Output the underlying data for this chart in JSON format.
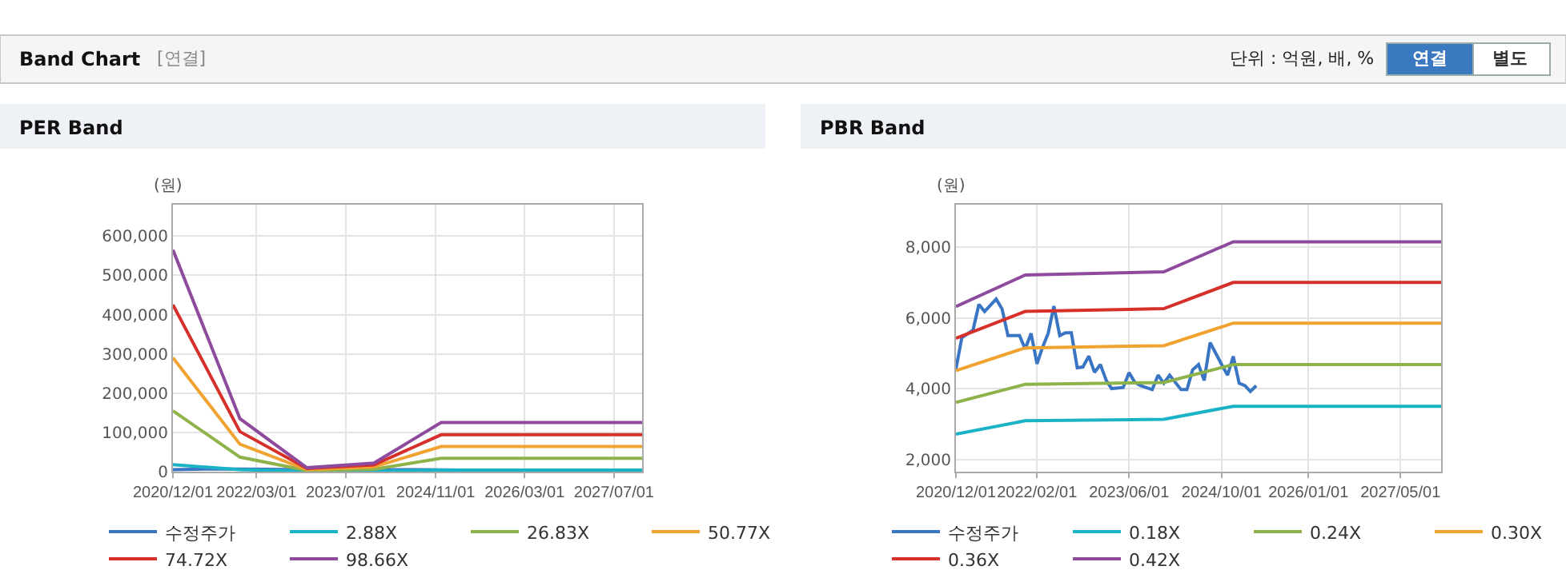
{
  "chart_data": [
    {
      "type": "other",
      "title": "Band Chart",
      "annotations": [
        "[연결]",
        "단위 : 억원, 배, %",
        "연결",
        "별도"
      ]
    },
    {
      "type": "line",
      "title": "PER Band",
      "ylabel": "(원)",
      "grid": true,
      "legend": "bottom",
      "marker": "none",
      "line_style": "solid",
      "xlim": [
        "2020-12-01",
        "2027-12-01"
      ],
      "xticks": [
        {
          "value": "2020-12-01",
          "label": "2020/12/01"
        },
        {
          "value": "2022-03-01",
          "label": "2022/03/01"
        },
        {
          "value": "2023-07-01",
          "label": "2023/07/01"
        },
        {
          "value": "2024-11-01",
          "label": "2024/11/01"
        },
        {
          "value": "2026-03-01",
          "label": "2026/03/01"
        },
        {
          "value": "2027-07-01",
          "label": "2027/07/01"
        }
      ],
      "ylim": [
        0,
        680000
      ],
      "yticks": [
        {
          "value": 0,
          "label": "0"
        },
        {
          "value": 100000,
          "label": "100,000"
        },
        {
          "value": 200000,
          "label": "200,000"
        },
        {
          "value": 300000,
          "label": "300,000"
        },
        {
          "value": 400000,
          "label": "400,000"
        },
        {
          "value": 500000,
          "label": "500,000"
        },
        {
          "value": 600000,
          "label": "600,000"
        }
      ],
      "series": [
        {
          "name": "수정주가",
          "color": "#3a75c4",
          "x": [
            "2020-12-01",
            "2021-07-01",
            "2022-05-01",
            "2023-03-01",
            "2024-08-01",
            "2025-04-01"
          ],
          "values": [
            5000,
            7000,
            6000,
            4000,
            5000,
            4000
          ]
        },
        {
          "name": "2.88X",
          "color": "#1ab3c6",
          "x": [
            "2020-12-01",
            "2021-12-01",
            "2022-12-01",
            "2023-12-01",
            "2024-12-01",
            "2027-12-01"
          ],
          "values": [
            18000,
            5000,
            1000,
            1000,
            4000,
            4000
          ]
        },
        {
          "name": "26.83X",
          "color": "#8db34a",
          "x": [
            "2020-12-01",
            "2021-12-01",
            "2022-12-01",
            "2023-12-01",
            "2024-12-01",
            "2027-12-01"
          ],
          "values": [
            155000,
            37000,
            3000,
            6000,
            34000,
            34000
          ]
        },
        {
          "name": "50.77X",
          "color": "#f0a330",
          "x": [
            "2020-12-01",
            "2021-12-01",
            "2022-12-01",
            "2023-12-01",
            "2024-12-01",
            "2027-12-01"
          ],
          "values": [
            290000,
            70000,
            5000,
            12000,
            64000,
            64000
          ]
        },
        {
          "name": "74.72X",
          "color": "#d6302b",
          "x": [
            "2020-12-01",
            "2021-12-01",
            "2022-12-01",
            "2023-12-01",
            "2024-12-01",
            "2027-12-01"
          ],
          "values": [
            425000,
            102000,
            8000,
            17000,
            94000,
            94000
          ]
        },
        {
          "name": "98.66X",
          "color": "#8e4a9c",
          "x": [
            "2020-12-01",
            "2021-12-01",
            "2022-12-01",
            "2023-12-01",
            "2024-12-01",
            "2027-12-01"
          ],
          "values": [
            565000,
            135000,
            10000,
            22000,
            125000,
            125000
          ]
        }
      ]
    },
    {
      "type": "line",
      "title": "PBR Band",
      "ylabel": "(원)",
      "grid": true,
      "legend": "bottom",
      "marker": "none",
      "line_style": "solid",
      "xlim": [
        "2020-12-01",
        "2027-12-01"
      ],
      "xticks": [
        {
          "value": "2020-12-01",
          "label": "2020/12/01"
        },
        {
          "value": "2022-02-01",
          "label": "2022/02/01"
        },
        {
          "value": "2023-06-01",
          "label": "2023/06/01"
        },
        {
          "value": "2024-10-01",
          "label": "2024/10/01"
        },
        {
          "value": "2026-01-01",
          "label": "2026/01/01"
        },
        {
          "value": "2027-05-01",
          "label": "2027/05/01"
        }
      ],
      "ylim": [
        1650,
        9200
      ],
      "yticks": [
        {
          "value": 2000,
          "label": "2,000"
        },
        {
          "value": 4000,
          "label": "4,000"
        },
        {
          "value": 6000,
          "label": "6,000"
        },
        {
          "value": 8000,
          "label": "8,000"
        }
      ],
      "series": [
        {
          "name": "수정주가",
          "color": "#3a75c4",
          "x": [
            "2020-12-01",
            "2021-01-01",
            "2021-03-01",
            "2021-04-01",
            "2021-05-01",
            "2021-07-01",
            "2021-08-01",
            "2021-09-01",
            "2021-11-01",
            "2021-12-01",
            "2022-01-01",
            "2022-02-01",
            "2022-03-01",
            "2022-04-01",
            "2022-05-01",
            "2022-06-01",
            "2022-07-01",
            "2022-08-01",
            "2022-09-01",
            "2022-10-01",
            "2022-11-01",
            "2022-12-01",
            "2023-01-01",
            "2023-02-01",
            "2023-03-01",
            "2023-05-01",
            "2023-06-01",
            "2023-07-01",
            "2023-08-01",
            "2023-10-01",
            "2023-11-01",
            "2023-12-01",
            "2024-01-01",
            "2024-03-01",
            "2024-04-01",
            "2024-05-01",
            "2024-06-01",
            "2024-07-01",
            "2024-08-01",
            "2024-10-01",
            "2024-11-01",
            "2024-12-01",
            "2025-01-01",
            "2025-02-01",
            "2025-03-01",
            "2025-04-01"
          ],
          "values": [
            4550,
            5440,
            5650,
            6380,
            6180,
            6530,
            6250,
            5500,
            5500,
            5120,
            5560,
            4700,
            5150,
            5560,
            6330,
            5500,
            5580,
            5580,
            4590,
            4610,
            4920,
            4460,
            4680,
            4230,
            4000,
            4030,
            4450,
            4180,
            4080,
            3970,
            4380,
            4150,
            4380,
            3970,
            3970,
            4530,
            4680,
            4230,
            5300,
            4680,
            4380,
            4910,
            4150,
            4080,
            3920,
            4080
          ]
        },
        {
          "name": "0.18X",
          "color": "#1ab3c6",
          "x": [
            "2020-12-01",
            "2021-12-01",
            "2023-06-01",
            "2023-12-01",
            "2024-12-01",
            "2027-12-01"
          ],
          "values": [
            2710,
            3090,
            3120,
            3130,
            3500,
            3500
          ]
        },
        {
          "name": "0.24X",
          "color": "#8db34a",
          "x": [
            "2020-12-01",
            "2021-12-01",
            "2023-06-01",
            "2023-12-01",
            "2024-12-01",
            "2027-12-01"
          ],
          "values": [
            3610,
            4120,
            4160,
            4170,
            4680,
            4680
          ]
        },
        {
          "name": "0.30X",
          "color": "#f0a330",
          "x": [
            "2020-12-01",
            "2021-12-01",
            "2023-06-01",
            "2023-12-01",
            "2024-12-01",
            "2027-12-01"
          ],
          "values": [
            4510,
            5150,
            5200,
            5210,
            5850,
            5850
          ]
        },
        {
          "name": "0.36X",
          "color": "#d6302b",
          "x": [
            "2020-12-01",
            "2021-12-01",
            "2023-06-01",
            "2023-12-01",
            "2024-12-01",
            "2027-12-01"
          ],
          "values": [
            5420,
            6180,
            6240,
            6260,
            7000,
            7000
          ]
        },
        {
          "name": "0.42X",
          "color": "#8e4a9c",
          "x": [
            "2020-12-01",
            "2021-12-01",
            "2023-06-01",
            "2023-12-01",
            "2024-12-01",
            "2027-12-01"
          ],
          "values": [
            6320,
            7210,
            7280,
            7300,
            8150,
            8150
          ]
        }
      ]
    }
  ]
}
